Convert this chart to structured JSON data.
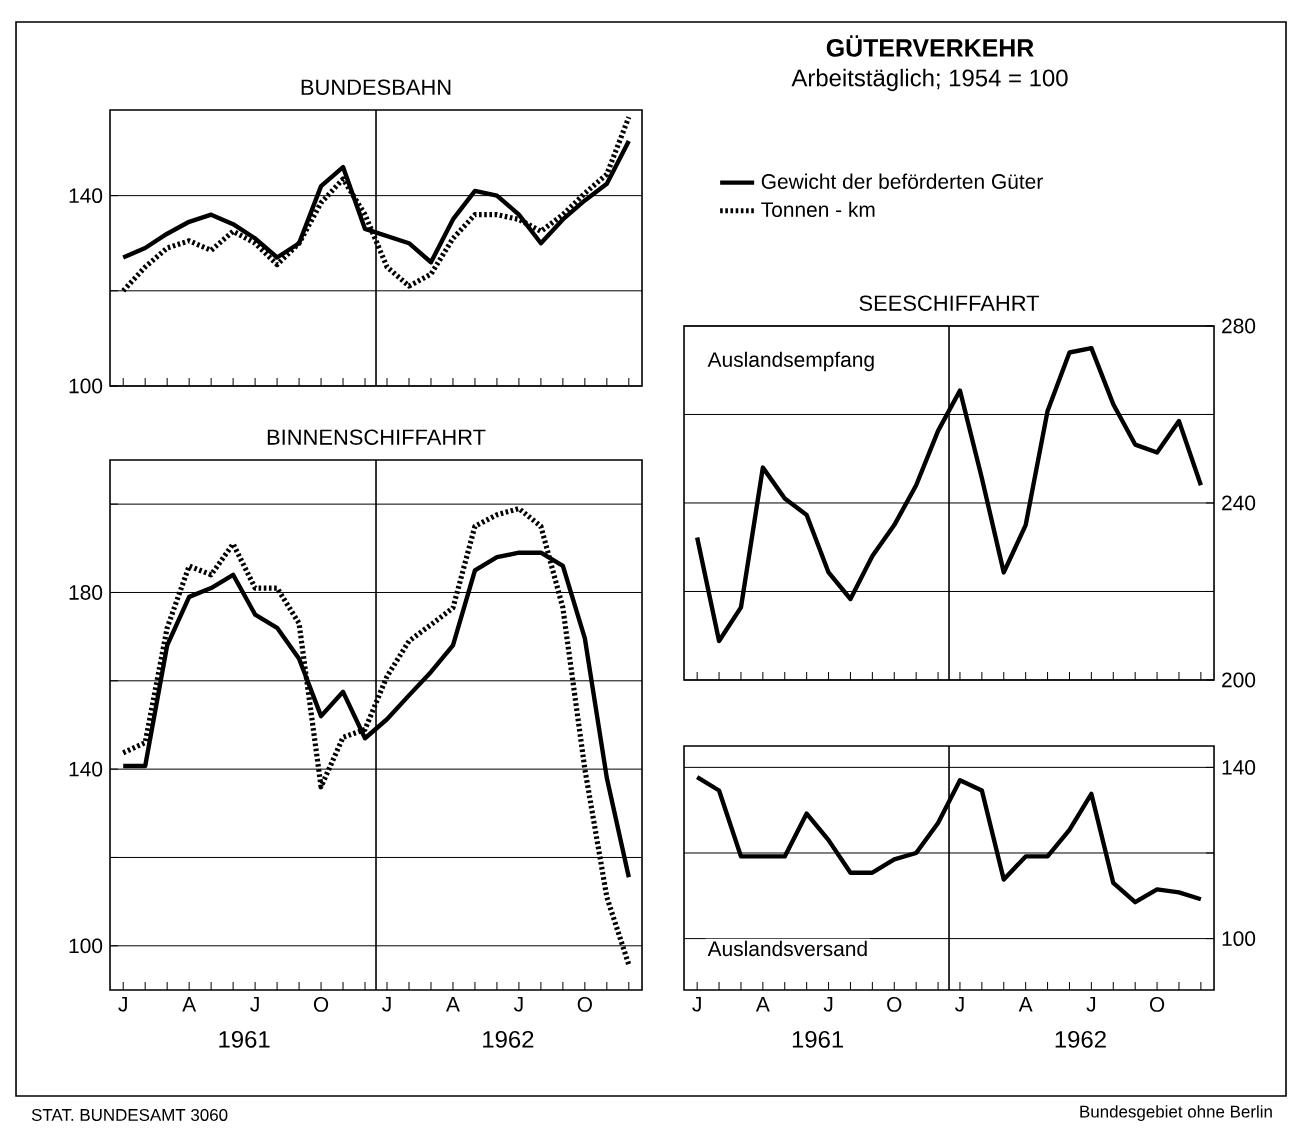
{
  "chart_data": [
    {
      "type": "line",
      "title": "BUNDESBAHN",
      "categories": [
        null,
        null,
        null,
        null,
        null,
        null,
        null,
        null,
        null,
        null,
        null,
        null,
        null,
        null,
        null,
        null,
        null,
        null,
        null,
        null,
        null,
        null,
        null,
        null
      ],
      "series": [
        {
          "name": "Gewicht der beförderten Güter",
          "color": "#000000",
          "line_style": "solid",
          "values": [
            127,
            129,
            132,
            134.5,
            136,
            134,
            131,
            127,
            130,
            142,
            146,
            133,
            131.5,
            130,
            126,
            135,
            141,
            140,
            136,
            130,
            135,
            139,
            142.5,
            151.5
          ]
        },
        {
          "name": "Tonnen - km",
          "color": "#000000",
          "line_style": "dashed",
          "values": [
            120,
            125,
            129,
            130.5,
            128.5,
            132.5,
            130,
            125.5,
            130,
            138.5,
            143.5,
            136,
            125,
            121,
            123.5,
            131,
            136,
            136,
            135,
            132.5,
            136,
            140.5,
            144.5,
            156.5
          ]
        }
      ],
      "ylim": [
        100,
        158
      ],
      "yticks": [
        100,
        {
          "value": 120,
          "label": null
        },
        140
      ],
      "grid": "y",
      "tick_labels": "y",
      "legend": "right"
    },
    {
      "type": "line",
      "title": "BINNENSCHIFFAHRT",
      "categories": [
        "J",
        null,
        null,
        "A",
        null,
        null,
        "J",
        null,
        null,
        "O",
        null,
        null,
        "J",
        null,
        null,
        "A",
        null,
        null,
        "J",
        null,
        null,
        "O",
        null,
        null
      ],
      "series": [
        {
          "color": "#000000",
          "line_style": "solid",
          "values": [
            140.7,
            140.7,
            168,
            179,
            181,
            184,
            175,
            172,
            165,
            152,
            157.5,
            147,
            151.3,
            156.7,
            162,
            168,
            185,
            188,
            189,
            189,
            186,
            169.6,
            138,
            115.5
          ]
        },
        {
          "color": "#000000",
          "line_style": "dashed",
          "values": [
            143.7,
            146,
            172,
            186,
            184,
            191,
            181,
            181,
            173,
            136,
            147.2,
            149,
            161,
            169,
            172.7,
            176.5,
            195,
            197.6,
            199,
            195,
            176.5,
            140,
            111,
            95.7
          ]
        }
      ],
      "ylim": [
        90,
        210
      ],
      "yticks": [
        100,
        {
          "value": 120,
          "label": null
        },
        140,
        {
          "value": 160,
          "label": null
        },
        180,
        {
          "value": 200,
          "label": null
        }
      ],
      "grid": "y",
      "annotations": [
        "1961",
        "1962"
      ]
    },
    {
      "type": "line",
      "title": "SEESCHIFFAHRT",
      "categories": [
        null,
        null,
        null,
        null,
        null,
        null,
        null,
        null,
        null,
        null,
        null,
        null,
        null,
        null,
        null,
        null,
        null,
        null,
        null,
        null,
        null,
        null,
        null,
        null
      ],
      "series": [
        {
          "name": "Auslandsempfang",
          "color": "#000000",
          "line_style": "solid",
          "values": [
            232.2,
            208.8,
            216.4,
            248,
            241,
            237.3,
            224.3,
            218.3,
            228,
            235,
            244,
            256.3,
            265.4,
            245.6,
            224.3,
            235,
            260.8,
            274,
            275,
            262.3,
            253.2,
            251.4,
            258.5,
            244
          ]
        }
      ],
      "ylim": [
        200,
        280
      ],
      "yticks": [
        200,
        {
          "value": 220,
          "label": null
        },
        240,
        {
          "value": 260,
          "label": null
        },
        280
      ],
      "grid": "y",
      "tick_labels": "y"
    },
    {
      "type": "line",
      "categories": [
        "J",
        null,
        null,
        "A",
        null,
        null,
        "J",
        null,
        null,
        "O",
        null,
        null,
        "J",
        null,
        null,
        "A",
        null,
        null,
        "J",
        null,
        null,
        "O",
        null,
        null
      ],
      "series": [
        {
          "name": "Auslandsversand",
          "color": "#000000",
          "line_style": "solid",
          "values": [
            137.7,
            134.6,
            119.2,
            119.2,
            119.2,
            129.2,
            123,
            115.4,
            115.4,
            118.5,
            120,
            127,
            137,
            134.6,
            113.8,
            119.2,
            119.2,
            125.4,
            133.8,
            113,
            108.5,
            111.5,
            110.8,
            109.2
          ]
        }
      ],
      "ylim": [
        88,
        145
      ],
      "yticks": [
        100,
        {
          "value": 120,
          "label": null
        },
        140
      ],
      "grid": "y",
      "annotations": [
        "1961",
        "1962"
      ]
    },
    {
      "type": "other",
      "title": "GÜTERVERKEHR",
      "subtitle": "Arbeitstäglich; 1954 = 100",
      "annotations": [
        "STAT. BUNDESAMT 3060",
        "Bundesgebiet ohne Berlin"
      ]
    }
  ]
}
